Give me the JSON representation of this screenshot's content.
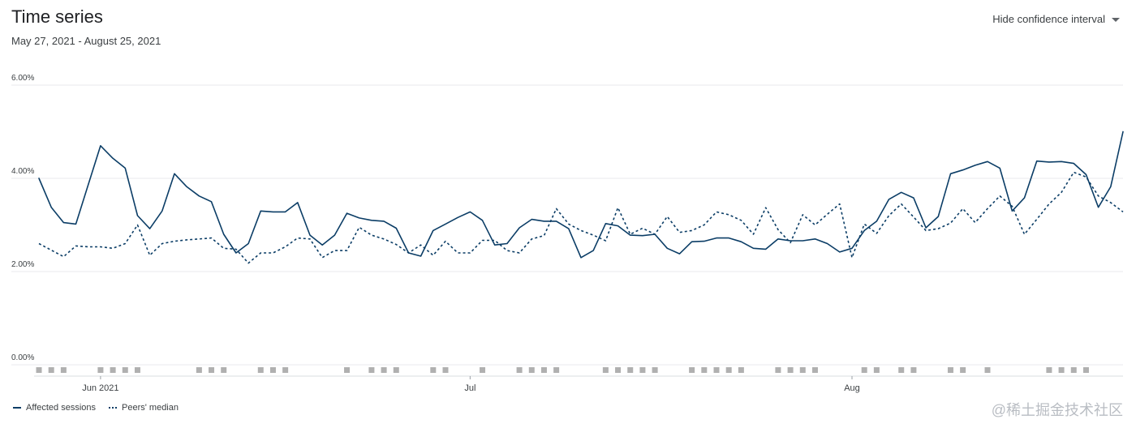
{
  "header": {
    "title": "Time series",
    "date_range": "May 27, 2021 - August 25, 2021",
    "ci_toggle_label": "Hide confidence interval",
    "ci_toggle_icon": "caret-down-icon"
  },
  "legend": {
    "affected_label": "Affected sessions",
    "peers_label": "Peers' median"
  },
  "watermark": "@稀土掘金技术社区",
  "colors": {
    "series": "#0b3d66",
    "grid": "#e8eaed",
    "marker": "#b0b0b0",
    "axis_text": "#3c4043"
  },
  "chart_data": {
    "type": "line",
    "start_date": "2021-05-27",
    "x_tick_labels": [
      {
        "label": "Jun 2021",
        "day": 5
      },
      {
        "label": "Jul",
        "day": 35
      },
      {
        "label": "Aug",
        "day": 66
      }
    ],
    "y_ticks": [
      {
        "value": 0,
        "label": "0.00%"
      },
      {
        "value": 2,
        "label": "2.00%"
      },
      {
        "value": 4,
        "label": "4.00%"
      },
      {
        "value": 6,
        "label": "6.00%"
      }
    ],
    "ylim": [
      0,
      6
    ],
    "grid": true,
    "legend_position": "bottom-left",
    "series": [
      {
        "name": "Affected sessions",
        "style": "solid",
        "values": [
          4.0,
          3.38,
          3.05,
          3.02,
          3.86,
          4.7,
          4.43,
          4.22,
          3.2,
          2.92,
          3.3,
          4.1,
          3.82,
          3.62,
          3.5,
          2.8,
          2.4,
          2.6,
          3.3,
          3.28,
          3.28,
          3.48,
          2.78,
          2.57,
          2.78,
          3.25,
          3.15,
          3.1,
          3.08,
          2.93,
          2.4,
          2.33,
          2.88,
          3.02,
          3.16,
          3.28,
          3.1,
          2.57,
          2.6,
          2.94,
          3.12,
          3.08,
          3.08,
          2.92,
          2.3,
          2.45,
          3.03,
          2.98,
          2.78,
          2.77,
          2.8,
          2.5,
          2.38,
          2.64,
          2.65,
          2.72,
          2.72,
          2.64,
          2.5,
          2.48,
          2.7,
          2.66,
          2.66,
          2.7,
          2.6,
          2.42,
          2.5,
          2.88,
          3.08,
          3.55,
          3.7,
          3.58,
          2.94,
          3.18,
          4.1,
          4.18,
          4.28,
          4.36,
          4.22,
          3.3,
          3.58,
          4.37,
          4.35,
          4.36,
          4.32,
          4.08,
          3.38,
          3.82,
          5.0
        ]
      },
      {
        "name": "Peers' median",
        "style": "dotted",
        "values": [
          2.6,
          2.46,
          2.32,
          2.55,
          2.53,
          2.53,
          2.5,
          2.6,
          3.0,
          2.35,
          2.6,
          2.65,
          2.68,
          2.7,
          2.72,
          2.5,
          2.48,
          2.18,
          2.4,
          2.4,
          2.53,
          2.72,
          2.7,
          2.3,
          2.45,
          2.45,
          2.95,
          2.78,
          2.7,
          2.58,
          2.4,
          2.57,
          2.35,
          2.65,
          2.4,
          2.4,
          2.67,
          2.67,
          2.45,
          2.4,
          2.7,
          2.77,
          3.35,
          3.02,
          2.88,
          2.78,
          2.66,
          3.37,
          2.8,
          2.93,
          2.8,
          3.18,
          2.84,
          2.88,
          3.0,
          3.28,
          3.22,
          3.1,
          2.8,
          3.37,
          2.9,
          2.62,
          3.22,
          3.0,
          3.23,
          3.45,
          2.3,
          3.02,
          2.82,
          3.2,
          3.45,
          3.17,
          2.88,
          2.92,
          3.04,
          3.35,
          3.05,
          3.35,
          3.62,
          3.4,
          2.8,
          3.12,
          3.45,
          3.7,
          4.13,
          4.03,
          3.62,
          3.48,
          3.28
        ]
      }
    ],
    "event_marker_days": [
      0,
      1,
      2,
      5,
      6,
      7,
      8,
      13,
      14,
      15,
      18,
      19,
      20,
      25,
      27,
      28,
      29,
      32,
      33,
      36,
      39,
      40,
      41,
      42,
      46,
      47,
      48,
      49,
      50,
      53,
      54,
      55,
      56,
      57,
      60,
      61,
      62,
      63,
      67,
      68,
      70,
      71,
      74,
      75,
      77,
      82,
      83,
      84,
      85
    ]
  }
}
